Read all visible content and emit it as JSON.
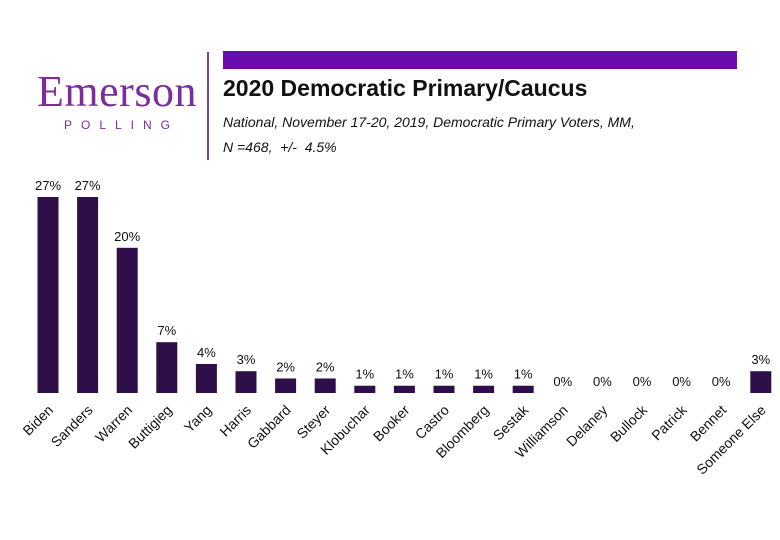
{
  "logo": {
    "word": "Emerson",
    "sub": "POLLING"
  },
  "colors": {
    "accent": "#6a0dad",
    "bar": "#2e0f4a",
    "logo": "#7b2d9e"
  },
  "header": {
    "title": "2020 Democratic Primary/Caucus",
    "subtitle": "National, November 17-20, 2019, Democratic Primary Voters, MM,",
    "sample": "N =468,  +/-  4.5%"
  },
  "chart_data": {
    "type": "bar",
    "title": "2020 Democratic Primary/Caucus",
    "categories": [
      "Biden",
      "Sanders",
      "Warren",
      "Buttigieg",
      "Yang",
      "Harris",
      "Gabbard",
      "Steyer",
      "Klobuchar",
      "Booker",
      "Castro",
      "Bloomberg",
      "Sestak",
      "Williamson",
      "Delaney",
      "Bullock",
      "Patrick",
      "Bennet",
      "Someone Else"
    ],
    "values": [
      27,
      27,
      20,
      7,
      4,
      3,
      2,
      2,
      1,
      1,
      1,
      1,
      1,
      0,
      0,
      0,
      0,
      0,
      3
    ],
    "value_suffix": "%",
    "xlabel": "",
    "ylabel": "",
    "ylim": [
      0,
      27
    ],
    "grid": false,
    "legend": false
  }
}
